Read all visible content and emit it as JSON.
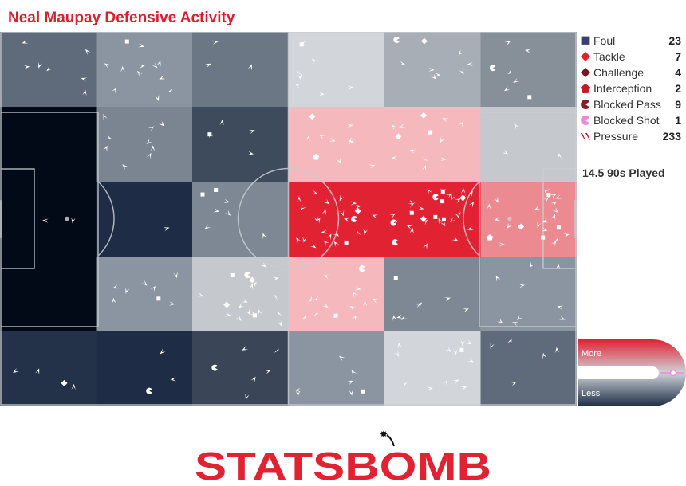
{
  "title": "Neal Maupay Defensive Activity",
  "legend": [
    {
      "label": "Foul",
      "count": "23",
      "icon": "square-icon",
      "color": "#3a3d6e"
    },
    {
      "label": "Tackle",
      "count": "7",
      "icon": "diamond-icon",
      "color": "#e02233"
    },
    {
      "label": "Challenge",
      "count": "4",
      "icon": "diamond-icon",
      "color": "#7a1420"
    },
    {
      "label": "Interception",
      "count": "2",
      "icon": "pentagon-icon",
      "color": "#c41a2a"
    },
    {
      "label": "Blocked Pass",
      "count": "9",
      "icon": "pacman-icon",
      "color": "#8a1a24"
    },
    {
      "label": "Blocked Shot",
      "count": "1",
      "icon": "pacman-icon",
      "color": "#ee88dd"
    },
    {
      "label": "Pressure",
      "count": "233",
      "icon": "pressure-icon",
      "color": "#c41a2a"
    }
  ],
  "played": "14.5 90s Played",
  "scale": {
    "more": "More",
    "less": "Less",
    "accent": "#e02233",
    "dark": "#1e2d45"
  },
  "logo": {
    "text": "STATSBOMB",
    "color": "#e02233"
  },
  "chart_data": {
    "type": "heatmap",
    "columns": 6,
    "rows": 5,
    "cell_colors": [
      [
        "#5f6b7b",
        "#8b95a1",
        "#6b7785",
        "#d2d5d9",
        "#a7aeb6",
        "#878f99"
      ],
      [
        "#010a16",
        "#7b8591",
        "#3e4b5d",
        "#f5b8bc",
        "#f5b8bc",
        "#c5c9ce"
      ],
      [
        "#010a16",
        "#1e2d45",
        "#7e8894",
        "#e02233",
        "#e02233",
        "#ec8a91"
      ],
      [
        "#010a16",
        "#8b95a1",
        "#c5c9ce",
        "#f5b8bc",
        "#7e8894",
        "#8b95a1"
      ],
      [
        "#243249",
        "#1e2d45",
        "#3a4658",
        "#8b95a1",
        "#d2d5d9",
        "#5f6b7b"
      ]
    ],
    "legend_counts": {
      "Foul": 23,
      "Tackle": 7,
      "Challenge": 4,
      "Interception": 2,
      "Blocked Pass": 9,
      "Blocked Shot": 1,
      "Pressure": 233
    }
  }
}
